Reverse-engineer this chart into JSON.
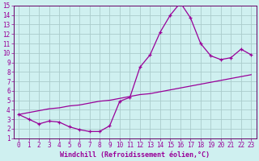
{
  "xlabel": "Windchill (Refroidissement éolien,°C)",
  "bg_color": "#cff0f0",
  "grid_color": "#aacccc",
  "line_color": "#990099",
  "spine_color": "#660066",
  "xlim": [
    -0.5,
    23.5
  ],
  "ylim": [
    1,
    15
  ],
  "xticks": [
    0,
    1,
    2,
    3,
    4,
    5,
    6,
    7,
    8,
    9,
    10,
    11,
    12,
    13,
    14,
    15,
    16,
    17,
    18,
    19,
    20,
    21,
    22,
    23
  ],
  "yticks": [
    1,
    2,
    3,
    4,
    5,
    6,
    7,
    8,
    9,
    10,
    11,
    12,
    13,
    14,
    15
  ],
  "curve1_x": [
    0,
    1,
    2,
    3,
    4,
    5,
    6,
    7,
    8,
    9,
    10,
    11,
    12,
    13,
    14,
    15,
    16,
    17,
    18,
    19,
    20,
    21,
    22,
    23
  ],
  "curve1_y": [
    3.5,
    3.0,
    2.5,
    2.8,
    2.7,
    2.2,
    1.9,
    1.7,
    1.7,
    2.3,
    4.9,
    5.3,
    8.5,
    9.8,
    12.2,
    14.0,
    15.3,
    13.7,
    11.0,
    9.7,
    9.3,
    9.5,
    10.4,
    9.8
  ],
  "curve2_x": [
    0,
    1,
    2,
    3,
    4,
    5,
    6,
    7,
    8,
    9,
    10,
    11,
    12,
    13,
    14,
    15,
    16,
    17,
    18,
    19,
    20,
    21,
    22,
    23
  ],
  "curve2_y": [
    3.5,
    3.7,
    3.9,
    4.1,
    4.2,
    4.4,
    4.5,
    4.7,
    4.9,
    5.0,
    5.2,
    5.4,
    5.6,
    5.7,
    5.9,
    6.1,
    6.3,
    6.5,
    6.7,
    6.9,
    7.1,
    7.3,
    7.5,
    7.7
  ]
}
